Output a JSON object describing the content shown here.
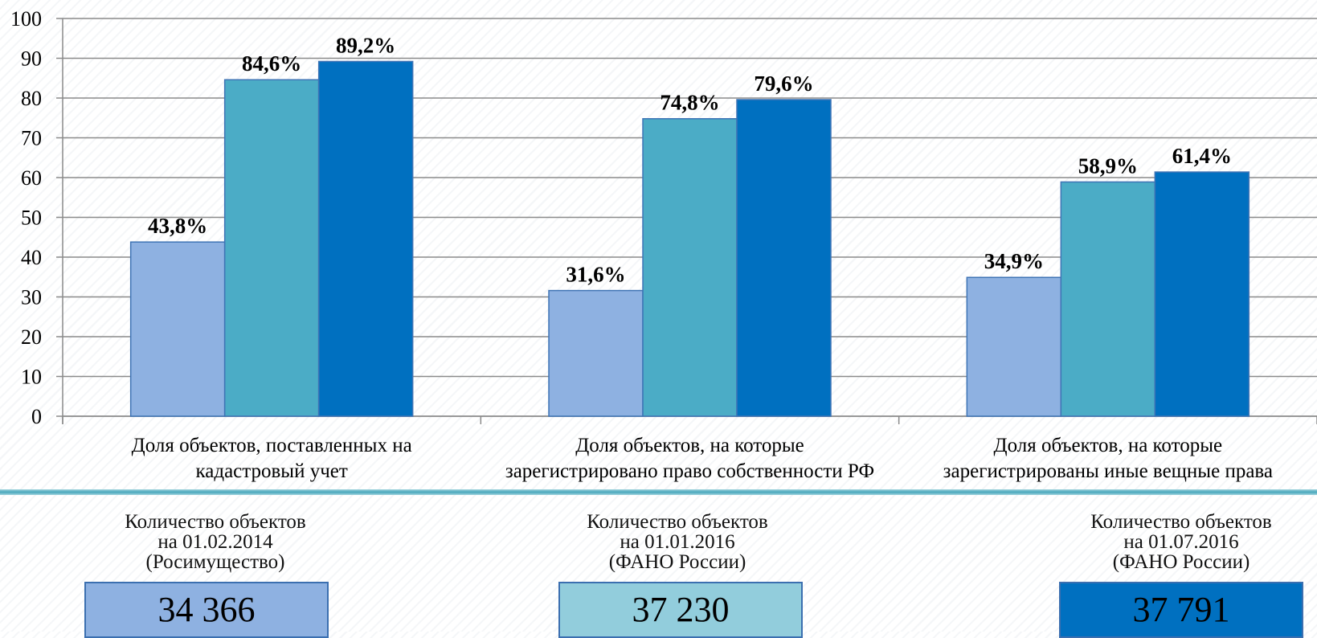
{
  "chart_data": {
    "type": "bar",
    "ylim": [
      0,
      100
    ],
    "yticks": [
      "100",
      "90",
      "80",
      "70",
      "60",
      "50",
      "40",
      "30",
      "20",
      "10",
      "0"
    ],
    "categories": [
      [
        "Доля объектов, поставленных на",
        "кадастровый учет"
      ],
      [
        "Доля объектов, на которые",
        "зарегистрировано право собственности РФ"
      ],
      [
        "Доля объектов, на которые",
        "зарегистрированы иные вещные права"
      ]
    ],
    "series": [
      {
        "color": "#8eb1e1",
        "values": [
          43.8,
          31.6,
          34.9
        ],
        "labels": [
          "43,8%",
          "31,6%",
          "34,9%"
        ]
      },
      {
        "color": "#4bacc6",
        "values": [
          84.6,
          74.8,
          58.9
        ],
        "labels": [
          "84,6%",
          "74,8%",
          "58,9%"
        ]
      },
      {
        "color": "#0070c0",
        "values": [
          89.2,
          79.6,
          61.4
        ],
        "labels": [
          "89,2%",
          "79,6%",
          "61,4%"
        ]
      }
    ],
    "grid": true
  },
  "panels": [
    {
      "line1": "Количество объектов",
      "line2": "на 01.02.2014",
      "line3": "(Росимущество)",
      "value": "34 366",
      "color": "#8eb1e1",
      "text_color": "#000000"
    },
    {
      "line1": "Количество объектов",
      "line2": "на 01.01.2016",
      "line3": "(ФАНО России)",
      "value": "37 230",
      "color": "#92cddc",
      "text_color": "#000000"
    },
    {
      "line1": "Количество объектов",
      "line2": "на 01.07.2016",
      "line3": "(ФАНО России)",
      "value": "37 791",
      "color": "#0070c0",
      "text_color": "#000000"
    }
  ]
}
